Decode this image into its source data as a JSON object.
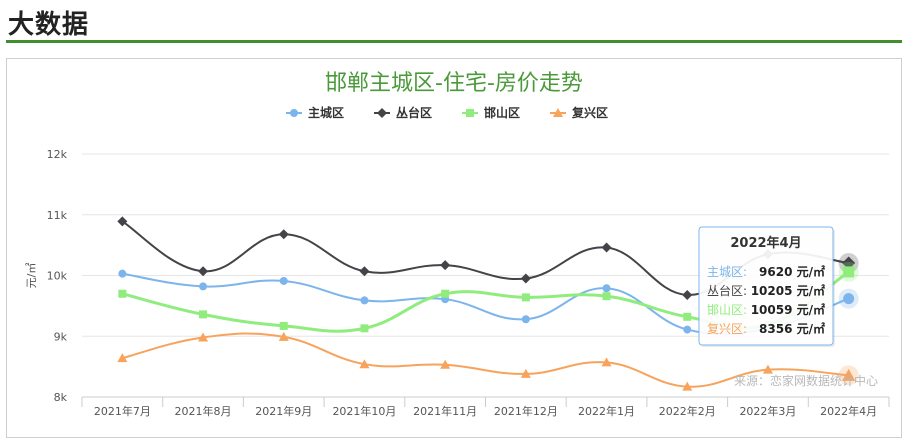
{
  "section": {
    "title": "大数据"
  },
  "chart_data": {
    "type": "line",
    "title": "邯郸主城区-住宅-房价走势",
    "ylabel": "元/㎡",
    "ylim": [
      8000,
      12000
    ],
    "yticks": [
      8000,
      9000,
      10000,
      11000,
      12000
    ],
    "ytick_labels": [
      "8k",
      "9k",
      "10k",
      "11k",
      "12k"
    ],
    "categories": [
      "2021年7月",
      "2021年8月",
      "2021年9月",
      "2021年10月",
      "2021年11月",
      "2021年12月",
      "2022年1月",
      "2022年2月",
      "2022年3月",
      "2022年4月"
    ],
    "series": [
      {
        "name": "主城区",
        "color": "#7cb5ec",
        "marker": "circle",
        "values": [
          10030,
          9820,
          9910,
          9590,
          9610,
          9280,
          9790,
          9110,
          9130,
          9620
        ]
      },
      {
        "name": "丛台区",
        "color": "#434348",
        "marker": "diamond",
        "values": [
          10890,
          10070,
          10680,
          10070,
          10170,
          9950,
          10460,
          9680,
          10350,
          10205
        ]
      },
      {
        "name": "邯山区",
        "color": "#90ed7d",
        "marker": "square",
        "values": [
          9700,
          9360,
          9170,
          9130,
          9700,
          9640,
          9660,
          9320,
          9190,
          10059
        ]
      },
      {
        "name": "复兴区",
        "color": "#f7a35c",
        "marker": "triangle",
        "values": [
          8640,
          8980,
          8990,
          8540,
          8530,
          8380,
          8570,
          8170,
          8450,
          8356
        ]
      }
    ],
    "legend": "top-center",
    "grid": true,
    "tooltip": {
      "title": "2022年4月",
      "rows": [
        {
          "label": "主城区:",
          "value": "9620 元/㎡"
        },
        {
          "label": "丛台区:",
          "value": "10205 元/㎡"
        },
        {
          "label": "邯山区:",
          "value": "10059 元/㎡"
        },
        {
          "label": "复兴区:",
          "value": "8356 元/㎡"
        }
      ]
    },
    "source": "来源：恋家网数据统计中心"
  }
}
